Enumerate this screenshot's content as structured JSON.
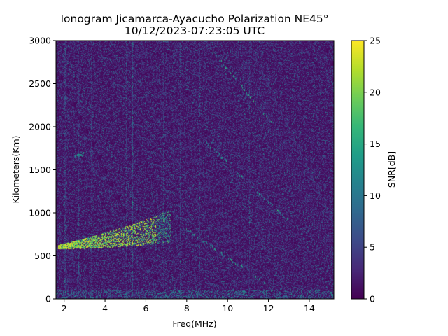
{
  "chart_data": {
    "type": "heatmap",
    "title": "Ionogram Jicamarca-Ayacucho Polarization NE45°",
    "subtitle": "10/12/2023-07:23:05 UTC",
    "xlabel": "Freq(MHz)",
    "ylabel": "Kilometers(Km)",
    "xlim": [
      1.6,
      15.2
    ],
    "ylim": [
      0,
      3000
    ],
    "x_ticks": [
      2,
      4,
      6,
      8,
      10,
      12,
      14
    ],
    "y_ticks": [
      0,
      500,
      1000,
      1500,
      2000,
      2500,
      3000
    ],
    "colorbar": {
      "label": "SNR[dB]",
      "range": [
        0,
        25
      ],
      "ticks": [
        0,
        5,
        10,
        15,
        20,
        25
      ],
      "colormap": "viridis"
    },
    "grid": false,
    "features": [
      {
        "name": "F-layer trace",
        "freq_mhz": [
          1.7,
          3.0,
          4.5,
          6.0,
          7.2
        ],
        "range_km": [
          600,
          640,
          700,
          770,
          840
        ],
        "snr_db": 25
      },
      {
        "name": "F-layer multi-hop trace",
        "freq_mhz": [
          2.5,
          3.0
        ],
        "range_km": [
          1650,
          1680
        ],
        "snr_db": 15
      },
      {
        "name": "oblique echo diagonal",
        "freq_mhz": [
          9.2,
          12.5
        ],
        "range_km": [
          2900,
          1950
        ],
        "snr_db": 20
      },
      {
        "name": "oblique echo diagonal",
        "freq_mhz": [
          9.0,
          13.0
        ],
        "range_km": [
          1800,
          900
        ],
        "snr_db": 18
      },
      {
        "name": "oblique echo diagonal",
        "freq_mhz": [
          8.0,
          12.0
        ],
        "range_km": [
          800,
          150
        ],
        "snr_db": 18
      }
    ]
  }
}
